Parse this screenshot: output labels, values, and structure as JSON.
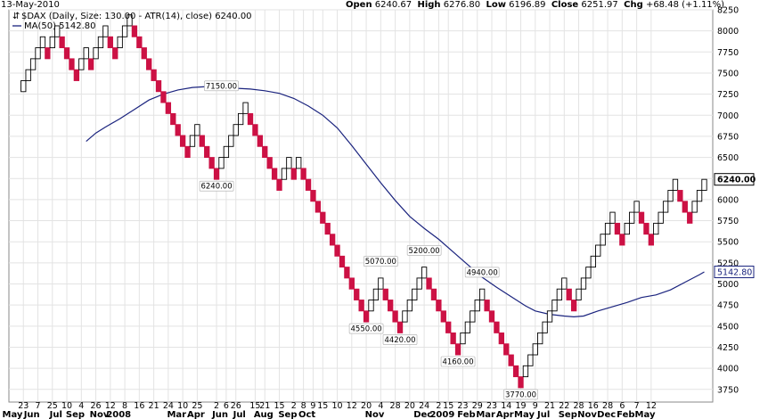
{
  "header": {
    "date": "13-May-2010",
    "open_label": "Open",
    "open_value": "6240.67",
    "high_label": "High",
    "high_value": "6276.80",
    "low_label": "Low",
    "low_value": "6196.89",
    "close_label": "Close",
    "close_value": "6251.97",
    "chg_label": "Chg",
    "chg_value": "+68.48 (+1.11%)"
  },
  "legend": {
    "main": "$DAX (Daily, Size: 130.00 - ATR(14), close) 6240.00",
    "ma": "MA(50) 5142.80"
  },
  "colors": {
    "up_fill": "#ffffff",
    "up_stroke": "#000000",
    "down_fill": "#cc1144",
    "ma_line": "#1a237e",
    "grid": "#e3e3e3"
  },
  "chart_data": {
    "type": "renko",
    "box_size": 130,
    "ylim": [
      3600,
      8250
    ],
    "yticks": [
      3750,
      4000,
      4250,
      4500,
      4750,
      5000,
      5250,
      5500,
      5750,
      6000,
      6250,
      6500,
      6750,
      7000,
      7250,
      7500,
      7750,
      8000,
      8250
    ],
    "last_value_label": "6240.00",
    "ma_value_label": "5142.80",
    "bricks": [
      {
        "c": 3,
        "lo": 7280,
        "d": "up"
      },
      {
        "c": 4,
        "lo": 7410,
        "d": "up"
      },
      {
        "c": 5,
        "lo": 7540,
        "d": "up"
      },
      {
        "c": 6,
        "lo": 7670,
        "d": "up"
      },
      {
        "c": 7,
        "lo": 7800,
        "d": "up"
      },
      {
        "c": 8,
        "lo": 7670,
        "d": "down"
      },
      {
        "c": 9,
        "lo": 7800,
        "d": "up"
      },
      {
        "c": 10,
        "lo": 7930,
        "d": "up"
      },
      {
        "c": 11,
        "lo": 7800,
        "d": "down"
      },
      {
        "c": 12,
        "lo": 7670,
        "d": "down"
      },
      {
        "c": 13,
        "lo": 7540,
        "d": "down"
      },
      {
        "c": 14,
        "lo": 7410,
        "d": "down"
      },
      {
        "c": 15,
        "lo": 7540,
        "d": "up"
      },
      {
        "c": 16,
        "lo": 7670,
        "d": "up"
      },
      {
        "c": 17,
        "lo": 7540,
        "d": "down"
      },
      {
        "c": 18,
        "lo": 7670,
        "d": "up"
      },
      {
        "c": 19,
        "lo": 7800,
        "d": "up"
      },
      {
        "c": 20,
        "lo": 7930,
        "d": "up"
      },
      {
        "c": 21,
        "lo": 7800,
        "d": "down"
      },
      {
        "c": 22,
        "lo": 7670,
        "d": "down"
      },
      {
        "c": 23,
        "lo": 7800,
        "d": "up"
      },
      {
        "c": 24,
        "lo": 7930,
        "d": "up"
      },
      {
        "c": 25,
        "lo": 8060,
        "d": "up"
      },
      {
        "c": 26,
        "lo": 7930,
        "d": "down"
      },
      {
        "c": 27,
        "lo": 7800,
        "d": "down"
      },
      {
        "c": 28,
        "lo": 7670,
        "d": "down"
      },
      {
        "c": 29,
        "lo": 7540,
        "d": "down"
      },
      {
        "c": 30,
        "lo": 7410,
        "d": "down"
      },
      {
        "c": 31,
        "lo": 7280,
        "d": "down"
      },
      {
        "c": 32,
        "lo": 7150,
        "d": "down"
      },
      {
        "c": 33,
        "lo": 7020,
        "d": "down"
      },
      {
        "c": 34,
        "lo": 6890,
        "d": "down"
      },
      {
        "c": 35,
        "lo": 6760,
        "d": "down"
      },
      {
        "c": 36,
        "lo": 6630,
        "d": "down"
      },
      {
        "c": 37,
        "lo": 6500,
        "d": "down"
      },
      {
        "c": 38,
        "lo": 6630,
        "d": "up"
      },
      {
        "c": 39,
        "lo": 6760,
        "d": "up"
      },
      {
        "c": 40,
        "lo": 6630,
        "d": "down"
      },
      {
        "c": 41,
        "lo": 6500,
        "d": "down"
      },
      {
        "c": 42,
        "lo": 6370,
        "d": "down"
      },
      {
        "c": 43,
        "lo": 6240,
        "d": "down"
      },
      {
        "c": 44,
        "lo": 6370,
        "d": "up"
      },
      {
        "c": 45,
        "lo": 6500,
        "d": "up"
      },
      {
        "c": 46,
        "lo": 6630,
        "d": "up"
      },
      {
        "c": 47,
        "lo": 6760,
        "d": "up"
      },
      {
        "c": 48,
        "lo": 6890,
        "d": "up"
      },
      {
        "c": 49,
        "lo": 7020,
        "d": "up"
      },
      {
        "c": 50,
        "lo": 6890,
        "d": "down"
      },
      {
        "c": 51,
        "lo": 6760,
        "d": "down"
      },
      {
        "c": 52,
        "lo": 6630,
        "d": "down"
      },
      {
        "c": 53,
        "lo": 6500,
        "d": "down"
      },
      {
        "c": 54,
        "lo": 6370,
        "d": "down"
      },
      {
        "c": 55,
        "lo": 6240,
        "d": "down"
      },
      {
        "c": 56,
        "lo": 6110,
        "d": "down"
      },
      {
        "c": 57,
        "lo": 6240,
        "d": "up"
      },
      {
        "c": 58,
        "lo": 6370,
        "d": "up"
      },
      {
        "c": 59,
        "lo": 6240,
        "d": "down"
      },
      {
        "c": 60,
        "lo": 6370,
        "d": "up"
      },
      {
        "c": 61,
        "lo": 6240,
        "d": "down"
      },
      {
        "c": 62,
        "lo": 6110,
        "d": "down"
      },
      {
        "c": 63,
        "lo": 5980,
        "d": "down"
      },
      {
        "c": 64,
        "lo": 5850,
        "d": "down"
      },
      {
        "c": 65,
        "lo": 5720,
        "d": "down"
      },
      {
        "c": 66,
        "lo": 5590,
        "d": "down"
      },
      {
        "c": 67,
        "lo": 5460,
        "d": "down"
      },
      {
        "c": 68,
        "lo": 5330,
        "d": "down"
      },
      {
        "c": 69,
        "lo": 5200,
        "d": "down"
      },
      {
        "c": 70,
        "lo": 5070,
        "d": "down"
      },
      {
        "c": 71,
        "lo": 4940,
        "d": "down"
      },
      {
        "c": 72,
        "lo": 4810,
        "d": "down"
      },
      {
        "c": 73,
        "lo": 4680,
        "d": "down"
      },
      {
        "c": 74,
        "lo": 4550,
        "d": "down"
      },
      {
        "c": 75,
        "lo": 4680,
        "d": "up"
      },
      {
        "c": 76,
        "lo": 4810,
        "d": "up"
      },
      {
        "c": 77,
        "lo": 4940,
        "d": "up"
      },
      {
        "c": 78,
        "lo": 4810,
        "d": "down"
      },
      {
        "c": 79,
        "lo": 4680,
        "d": "down"
      },
      {
        "c": 80,
        "lo": 4550,
        "d": "down"
      },
      {
        "c": 81,
        "lo": 4420,
        "d": "down"
      },
      {
        "c": 82,
        "lo": 4550,
        "d": "up"
      },
      {
        "c": 83,
        "lo": 4680,
        "d": "up"
      },
      {
        "c": 84,
        "lo": 4810,
        "d": "up"
      },
      {
        "c": 85,
        "lo": 4940,
        "d": "up"
      },
      {
        "c": 86,
        "lo": 5070,
        "d": "up"
      },
      {
        "c": 87,
        "lo": 4940,
        "d": "down"
      },
      {
        "c": 88,
        "lo": 4810,
        "d": "down"
      },
      {
        "c": 89,
        "lo": 4680,
        "d": "down"
      },
      {
        "c": 90,
        "lo": 4550,
        "d": "down"
      },
      {
        "c": 91,
        "lo": 4420,
        "d": "down"
      },
      {
        "c": 92,
        "lo": 4290,
        "d": "down"
      },
      {
        "c": 93,
        "lo": 4160,
        "d": "down"
      },
      {
        "c": 94,
        "lo": 4290,
        "d": "up"
      },
      {
        "c": 95,
        "lo": 4420,
        "d": "up"
      },
      {
        "c": 96,
        "lo": 4550,
        "d": "up"
      },
      {
        "c": 97,
        "lo": 4680,
        "d": "up"
      },
      {
        "c": 98,
        "lo": 4810,
        "d": "up"
      },
      {
        "c": 99,
        "lo": 4680,
        "d": "down"
      },
      {
        "c": 100,
        "lo": 4550,
        "d": "down"
      },
      {
        "c": 101,
        "lo": 4420,
        "d": "down"
      },
      {
        "c": 102,
        "lo": 4290,
        "d": "down"
      },
      {
        "c": 103,
        "lo": 4160,
        "d": "down"
      },
      {
        "c": 104,
        "lo": 4030,
        "d": "down"
      },
      {
        "c": 105,
        "lo": 3900,
        "d": "down"
      },
      {
        "c": 106,
        "lo": 3770,
        "d": "down"
      },
      {
        "c": 107,
        "lo": 3900,
        "d": "up"
      },
      {
        "c": 108,
        "lo": 4030,
        "d": "up"
      },
      {
        "c": 109,
        "lo": 4160,
        "d": "up"
      },
      {
        "c": 110,
        "lo": 4290,
        "d": "up"
      },
      {
        "c": 111,
        "lo": 4420,
        "d": "up"
      },
      {
        "c": 112,
        "lo": 4550,
        "d": "up"
      },
      {
        "c": 113,
        "lo": 4680,
        "d": "up"
      },
      {
        "c": 114,
        "lo": 4810,
        "d": "up"
      },
      {
        "c": 115,
        "lo": 4940,
        "d": "up"
      },
      {
        "c": 116,
        "lo": 4810,
        "d": "down"
      },
      {
        "c": 117,
        "lo": 4680,
        "d": "down"
      },
      {
        "c": 118,
        "lo": 4810,
        "d": "up"
      },
      {
        "c": 119,
        "lo": 4940,
        "d": "up"
      },
      {
        "c": 120,
        "lo": 5070,
        "d": "up"
      },
      {
        "c": 121,
        "lo": 5200,
        "d": "up"
      },
      {
        "c": 122,
        "lo": 5330,
        "d": "up"
      },
      {
        "c": 123,
        "lo": 5460,
        "d": "up"
      },
      {
        "c": 124,
        "lo": 5590,
        "d": "up"
      },
      {
        "c": 125,
        "lo": 5720,
        "d": "up"
      },
      {
        "c": 126,
        "lo": 5590,
        "d": "down"
      },
      {
        "c": 127,
        "lo": 5460,
        "d": "down"
      },
      {
        "c": 128,
        "lo": 5590,
        "d": "up"
      },
      {
        "c": 129,
        "lo": 5720,
        "d": "up"
      },
      {
        "c": 130,
        "lo": 5850,
        "d": "up"
      },
      {
        "c": 131,
        "lo": 5720,
        "d": "down"
      },
      {
        "c": 132,
        "lo": 5590,
        "d": "down"
      },
      {
        "c": 133,
        "lo": 5460,
        "d": "down"
      },
      {
        "c": 134,
        "lo": 5590,
        "d": "up"
      },
      {
        "c": 135,
        "lo": 5720,
        "d": "up"
      },
      {
        "c": 136,
        "lo": 5850,
        "d": "up"
      },
      {
        "c": 137,
        "lo": 5980,
        "d": "up"
      },
      {
        "c": 138,
        "lo": 6110,
        "d": "up"
      },
      {
        "c": 139,
        "lo": 5980,
        "d": "down"
      },
      {
        "c": 140,
        "lo": 5850,
        "d": "down"
      },
      {
        "c": 141,
        "lo": 5720,
        "d": "down"
      },
      {
        "c": 142,
        "lo": 5850,
        "d": "up"
      },
      {
        "c": 143,
        "lo": 5980,
        "d": "up"
      },
      {
        "c": 144,
        "lo": 6110,
        "d": "up"
      }
    ],
    "ma50": [
      [
        16,
        6690
      ],
      [
        18,
        6790
      ],
      [
        20,
        6860
      ],
      [
        23,
        6960
      ],
      [
        26,
        7070
      ],
      [
        29,
        7180
      ],
      [
        32,
        7250
      ],
      [
        35,
        7300
      ],
      [
        38,
        7330
      ],
      [
        41,
        7340
      ],
      [
        44,
        7330
      ],
      [
        47,
        7320
      ],
      [
        50,
        7310
      ],
      [
        53,
        7290
      ],
      [
        56,
        7260
      ],
      [
        59,
        7200
      ],
      [
        62,
        7110
      ],
      [
        65,
        7000
      ],
      [
        68,
        6850
      ],
      [
        71,
        6640
      ],
      [
        74,
        6420
      ],
      [
        77,
        6200
      ],
      [
        80,
        5990
      ],
      [
        83,
        5800
      ],
      [
        86,
        5660
      ],
      [
        89,
        5530
      ],
      [
        92,
        5380
      ],
      [
        95,
        5230
      ],
      [
        98,
        5080
      ],
      [
        101,
        4960
      ],
      [
        104,
        4850
      ],
      [
        107,
        4740
      ],
      [
        109,
        4680
      ],
      [
        112,
        4640
      ],
      [
        115,
        4620
      ],
      [
        117,
        4610
      ],
      [
        119,
        4620
      ],
      [
        122,
        4680
      ],
      [
        125,
        4730
      ],
      [
        128,
        4780
      ],
      [
        131,
        4840
      ],
      [
        134,
        4870
      ],
      [
        137,
        4930
      ],
      [
        140,
        5020
      ],
      [
        143,
        5110
      ],
      [
        144,
        5142.8
      ]
    ],
    "annotations": [
      {
        "c": 44,
        "v": 7150,
        "text": "7150.00",
        "pos": "above"
      },
      {
        "c": 43,
        "v": 6240,
        "text": "6240.00",
        "pos": "below"
      },
      {
        "c": 77,
        "v": 5070,
        "text": "5070.00",
        "pos": "above"
      },
      {
        "c": 74,
        "v": 4550,
        "text": "4550.00",
        "pos": "below"
      },
      {
        "c": 86,
        "v": 5200,
        "text": "5200.00",
        "pos": "above"
      },
      {
        "c": 81,
        "v": 4420,
        "text": "4420.00",
        "pos": "below"
      },
      {
        "c": 98,
        "v": 4940,
        "text": "4940.00",
        "pos": "above"
      },
      {
        "c": 93,
        "v": 4160,
        "text": "4160.00",
        "pos": "below"
      },
      {
        "c": 106,
        "v": 3770,
        "text": "3770.00",
        "pos": "below"
      }
    ],
    "x_ticks_top": [
      {
        "c": 3,
        "t": "23"
      },
      {
        "c": 6,
        "t": "7"
      },
      {
        "c": 9,
        "t": "25"
      },
      {
        "c": 12,
        "t": "10"
      },
      {
        "c": 15,
        "t": "4"
      },
      {
        "c": 18,
        "t": "26"
      },
      {
        "c": 21,
        "t": "12"
      },
      {
        "c": 24,
        "t": "8"
      },
      {
        "c": 27,
        "t": "16"
      },
      {
        "c": 30,
        "t": "21"
      },
      {
        "c": 33,
        "t": "24"
      },
      {
        "c": 36,
        "t": "10"
      },
      {
        "c": 39,
        "t": "25"
      },
      {
        "c": 43,
        "t": "2"
      },
      {
        "c": 45,
        "t": "6"
      },
      {
        "c": 47,
        "t": "26"
      },
      {
        "c": 51,
        "t": "15"
      },
      {
        "c": 53,
        "t": "21"
      },
      {
        "c": 56,
        "t": "15"
      },
      {
        "c": 59,
        "t": "2"
      },
      {
        "c": 61,
        "t": "8"
      },
      {
        "c": 63,
        "t": "9"
      },
      {
        "c": 65,
        "t": "15"
      },
      {
        "c": 68,
        "t": "10"
      },
      {
        "c": 71,
        "t": "12"
      },
      {
        "c": 74,
        "t": "20"
      },
      {
        "c": 77,
        "t": "4"
      },
      {
        "c": 80,
        "t": "28"
      },
      {
        "c": 83,
        "t": "20"
      },
      {
        "c": 86,
        "t": "24"
      },
      {
        "c": 89,
        "t": "2"
      },
      {
        "c": 91,
        "t": "15"
      },
      {
        "c": 94,
        "t": "23"
      },
      {
        "c": 97,
        "t": "29"
      },
      {
        "c": 100,
        "t": "23"
      },
      {
        "c": 103,
        "t": "14"
      },
      {
        "c": 106,
        "t": "19"
      },
      {
        "c": 109,
        "t": "9"
      },
      {
        "c": 112,
        "t": "21"
      },
      {
        "c": 115,
        "t": "22"
      },
      {
        "c": 118,
        "t": "28"
      },
      {
        "c": 121,
        "t": "16"
      },
      {
        "c": 124,
        "t": "28"
      },
      {
        "c": 127,
        "t": "6"
      },
      {
        "c": 130,
        "t": "7"
      },
      {
        "c": 133,
        "t": "12"
      }
    ],
    "x_ticks_bottom": [
      {
        "c": 0,
        "t": "May"
      },
      {
        "c": 4,
        "t": "Jun"
      },
      {
        "c": 9,
        "t": "Jul"
      },
      {
        "c": 13,
        "t": "Sep"
      },
      {
        "c": 18,
        "t": "Nov"
      },
      {
        "c": 22,
        "t": "2008"
      },
      {
        "c": 34,
        "t": "Mar"
      },
      {
        "c": 38,
        "t": "Apr"
      },
      {
        "c": 43,
        "t": "Jun"
      },
      {
        "c": 47,
        "t": "Jul"
      },
      {
        "c": 52,
        "t": "Aug"
      },
      {
        "c": 57,
        "t": "Sep"
      },
      {
        "c": 61,
        "t": "Oct"
      },
      {
        "c": 75,
        "t": "Nov"
      },
      {
        "c": 85,
        "t": "Dec"
      },
      {
        "c": 89,
        "t": "2009"
      },
      {
        "c": 94,
        "t": "Feb"
      },
      {
        "c": 98,
        "t": "Mar"
      },
      {
        "c": 102,
        "t": "Apr"
      },
      {
        "c": 106,
        "t": "May"
      },
      {
        "c": 110,
        "t": "Jul"
      },
      {
        "c": 115,
        "t": "Sep"
      },
      {
        "c": 119,
        "t": "Nov"
      },
      {
        "c": 123,
        "t": "Dec"
      },
      {
        "c": 127,
        "t": "Feb"
      },
      {
        "c": 131,
        "t": "May"
      }
    ]
  }
}
